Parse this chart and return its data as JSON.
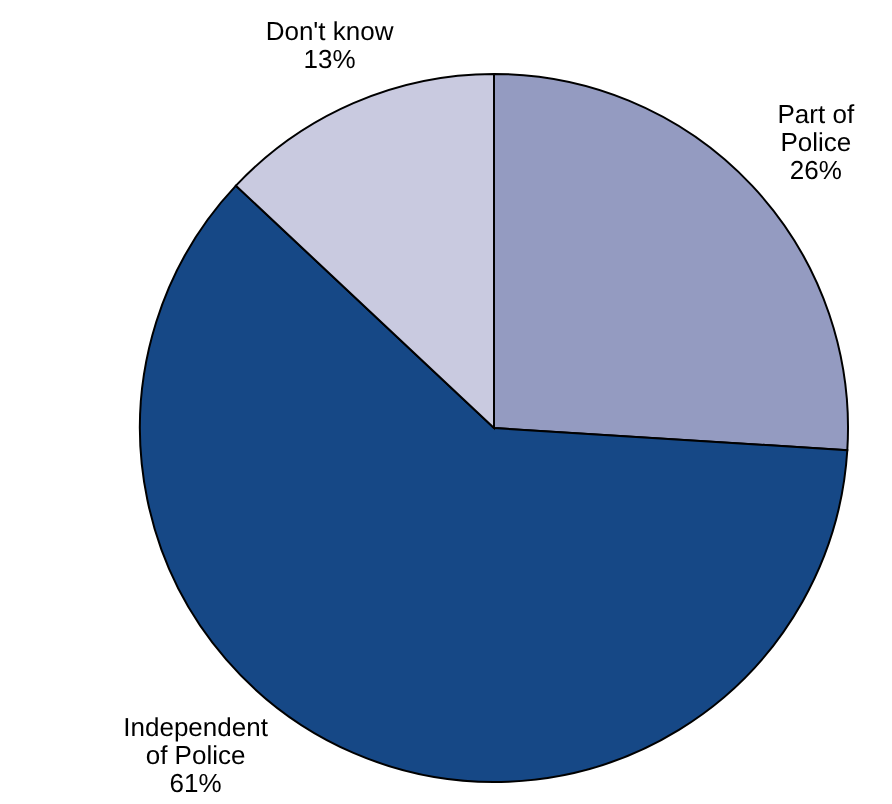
{
  "chart_data": {
    "type": "pie",
    "categories": [
      "Part of Police",
      "Independent of Police",
      "Don't know"
    ],
    "values": [
      26,
      61,
      13
    ],
    "value_labels": [
      "26%",
      "61%",
      "13%"
    ],
    "colors": [
      "#949bc1",
      "#164886",
      "#c9cae0"
    ]
  }
}
